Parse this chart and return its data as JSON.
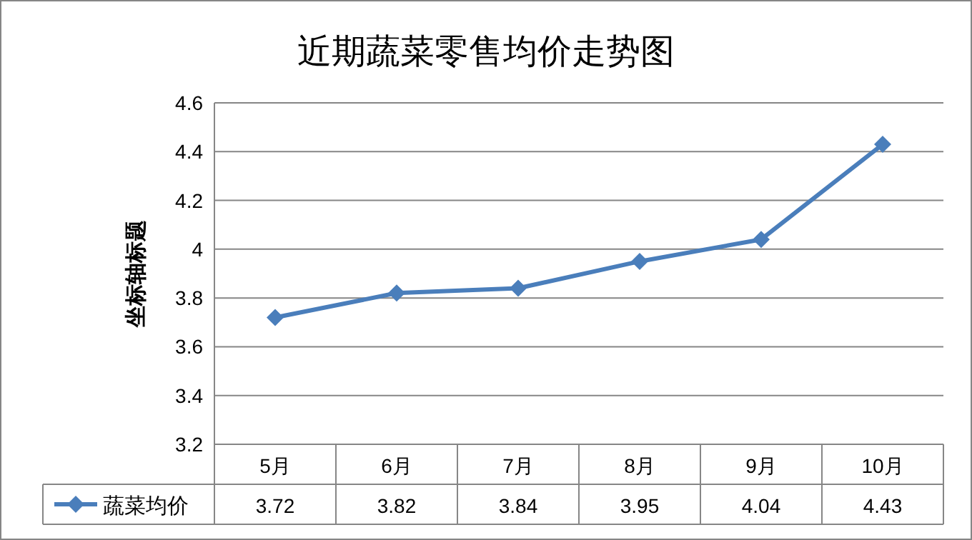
{
  "chart_data": {
    "type": "line",
    "title": "近期蔬菜零售均价走势图",
    "ylabel": "坐标轴标题",
    "categories": [
      "5月",
      "6月",
      "7月",
      "8月",
      "9月",
      "10月"
    ],
    "series": [
      {
        "name": "蔬菜均价",
        "color": "#4a7ebb",
        "values": [
          3.72,
          3.82,
          3.84,
          3.95,
          4.04,
          4.43
        ]
      }
    ],
    "ylim": [
      3.2,
      4.6
    ],
    "yticks": [
      3.2,
      3.4,
      3.6,
      3.8,
      4,
      4.2,
      4.4,
      4.6
    ],
    "grid": "y",
    "marker": "diamond",
    "line_style": "solid",
    "data_labels": true,
    "legend": "bottom"
  }
}
